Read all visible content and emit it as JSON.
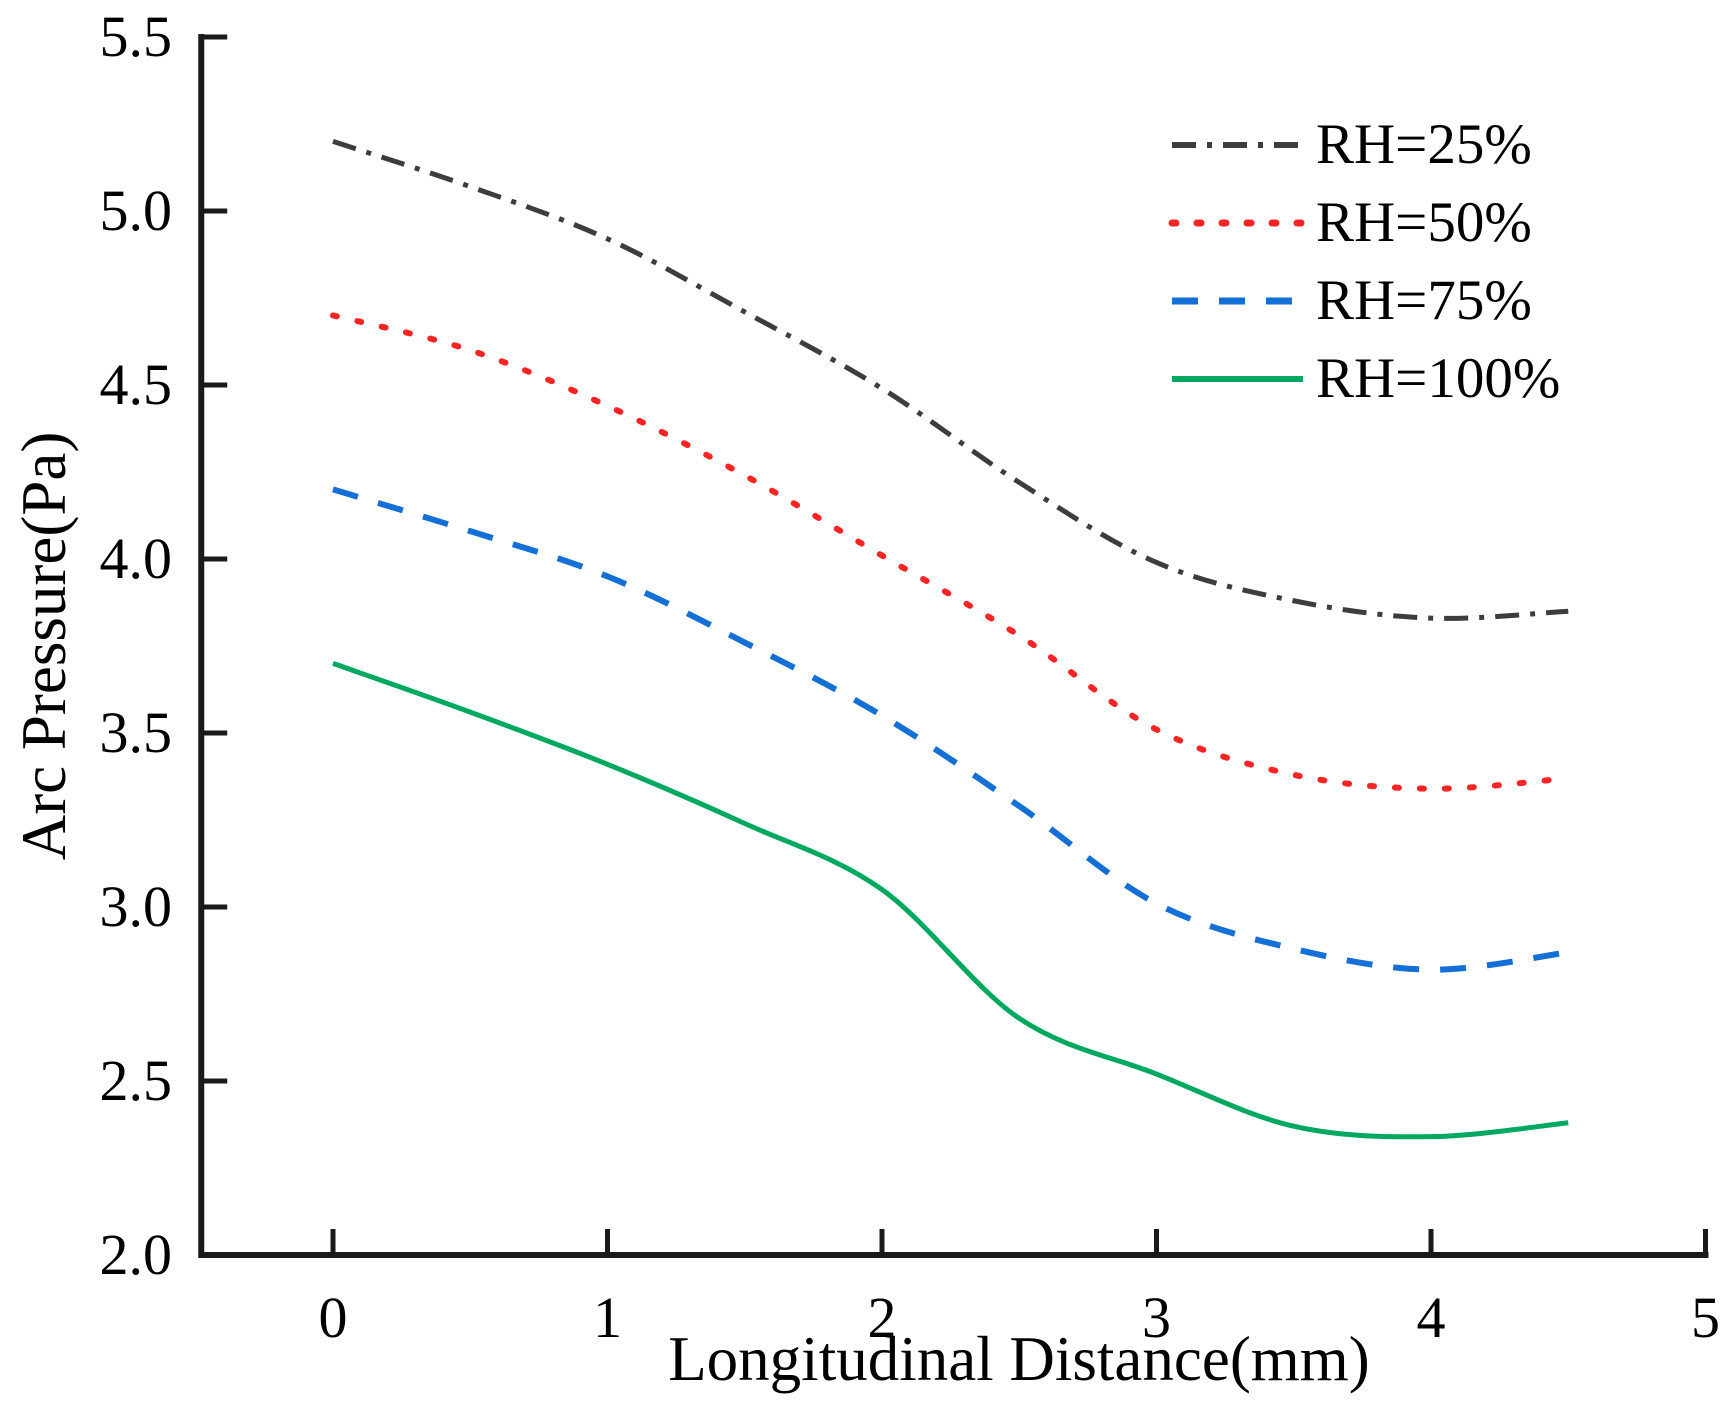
{
  "figure": {
    "background": "#ffffff",
    "axis_color": "#1a1a1a"
  },
  "chart_data": {
    "type": "line",
    "title": "",
    "xlabel": "Longitudinal Distance(mm)",
    "ylabel": "Arc Pressure(Pa)",
    "xlim": [
      -0.48,
      5.0
    ],
    "ylim": [
      2.0,
      5.5
    ],
    "grid": false,
    "legend_position": "upper right",
    "x_tick_labels": [
      "0",
      "1",
      "2",
      "3",
      "4",
      "5"
    ],
    "x_ticks": [
      0,
      1,
      2,
      3,
      4,
      5
    ],
    "y_tick_labels": [
      "2.0",
      "2.5",
      "3.0",
      "3.5",
      "4.0",
      "4.5",
      "5.0",
      "5.5"
    ],
    "y_ticks": [
      2.0,
      2.5,
      3.0,
      3.5,
      4.0,
      4.5,
      5.0,
      5.5
    ],
    "x": [
      0,
      0.5,
      1.0,
      1.5,
      2.0,
      2.5,
      3.0,
      3.5,
      4.0,
      4.5
    ],
    "series": [
      {
        "name": "RH=25%",
        "color": "#3d3d3d",
        "style": "dash-dot",
        "values": [
          5.2,
          5.07,
          4.92,
          4.71,
          4.49,
          4.22,
          3.99,
          3.88,
          3.83,
          3.85
        ]
      },
      {
        "name": "RH=50%",
        "color": "#fb2424",
        "style": "dotted",
        "values": [
          4.7,
          4.6,
          4.44,
          4.24,
          4.01,
          3.78,
          3.51,
          3.38,
          3.34,
          3.37
        ]
      },
      {
        "name": "RH=75%",
        "color": "#146fd7",
        "style": "dashed",
        "values": [
          4.2,
          4.08,
          3.95,
          3.76,
          3.55,
          3.29,
          3.01,
          2.88,
          2.82,
          2.87
        ]
      },
      {
        "name": "RH=100%",
        "color": "#00a95f",
        "style": "solid",
        "values": [
          3.7,
          3.56,
          3.41,
          3.24,
          3.05,
          2.68,
          2.52,
          2.37,
          2.34,
          2.38
        ]
      }
    ]
  }
}
